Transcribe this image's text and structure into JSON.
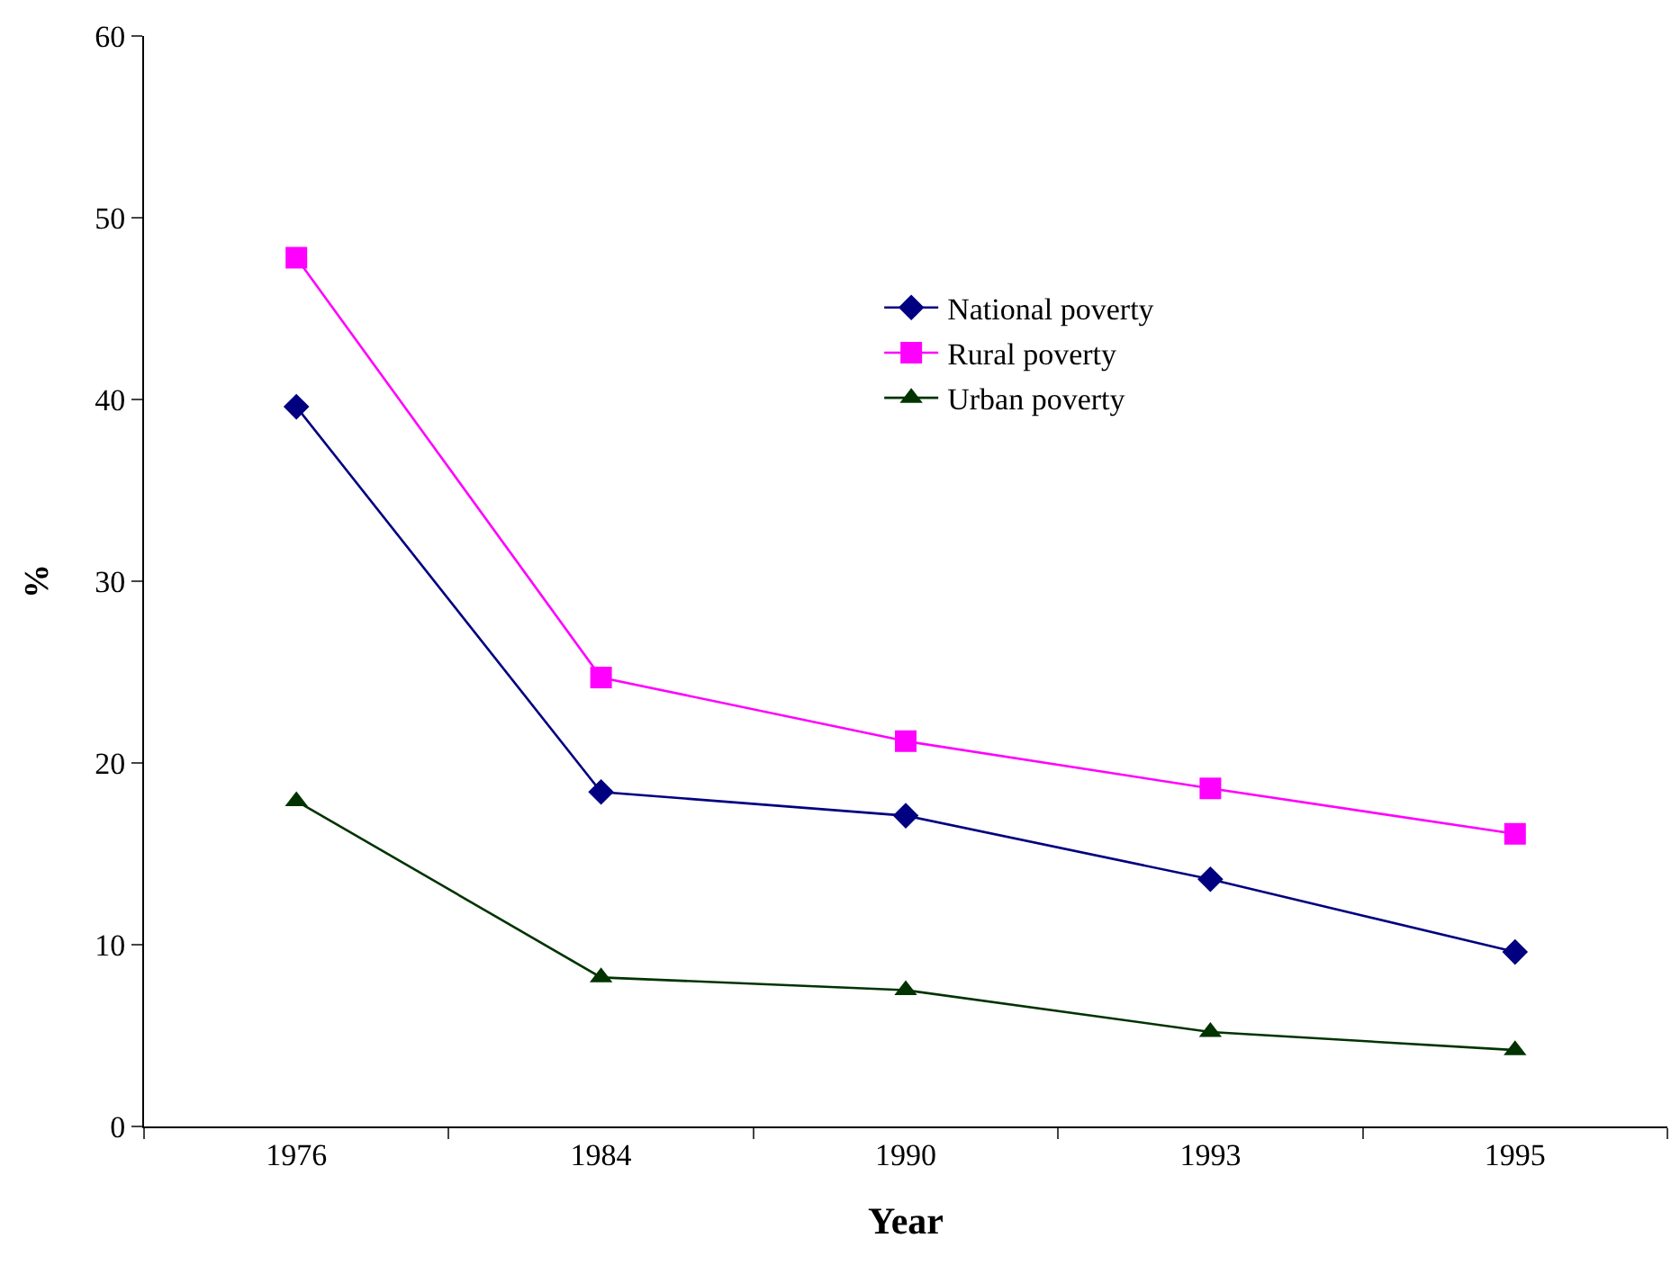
{
  "chart_data": {
    "type": "line",
    "xlabel": "Year",
    "ylabel": "%",
    "categories": [
      "1976",
      "1984",
      "1990",
      "1993",
      "1995"
    ],
    "series": [
      {
        "name": "National poverty",
        "color": "#000080",
        "marker": "diamond",
        "values": [
          39.6,
          18.4,
          17.1,
          13.6,
          9.6
        ]
      },
      {
        "name": "Rural poverty",
        "color": "#ff00ff",
        "marker": "square",
        "values": [
          47.8,
          24.7,
          21.2,
          18.6,
          16.1
        ]
      },
      {
        "name": "Urban poverty",
        "color": "#003300",
        "marker": "triangle",
        "values": [
          17.9,
          8.2,
          7.5,
          5.2,
          4.2
        ]
      }
    ],
    "ylim": [
      0,
      60
    ],
    "yticks": [
      0,
      10,
      20,
      30,
      40,
      50,
      60
    ],
    "grid": false,
    "legend": "top right",
    "line_style": "solid"
  }
}
